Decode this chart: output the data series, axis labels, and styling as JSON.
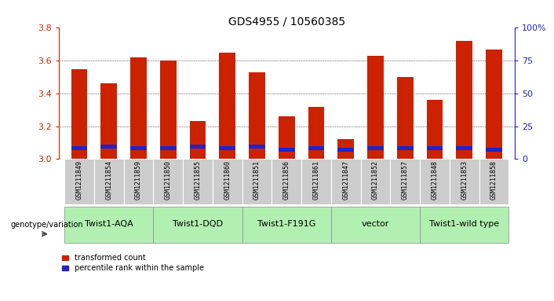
{
  "title": "GDS4955 / 10560385",
  "samples": [
    "GSM1211849",
    "GSM1211854",
    "GSM1211859",
    "GSM1211850",
    "GSM1211855",
    "GSM1211860",
    "GSM1211851",
    "GSM1211856",
    "GSM1211861",
    "GSM1211847",
    "GSM1211852",
    "GSM1211857",
    "GSM1211848",
    "GSM1211853",
    "GSM1211858"
  ],
  "red_values": [
    3.55,
    3.46,
    3.62,
    3.6,
    3.23,
    3.65,
    3.53,
    3.26,
    3.32,
    3.12,
    3.63,
    3.5,
    3.36,
    3.72,
    3.67
  ],
  "blue_heights": [
    0.025,
    0.025,
    0.025,
    0.025,
    0.025,
    0.025,
    0.025,
    0.025,
    0.025,
    0.025,
    0.025,
    0.025,
    0.025,
    0.025,
    0.025
  ],
  "blue_bottoms": [
    3.055,
    3.065,
    3.055,
    3.055,
    3.065,
    3.055,
    3.065,
    3.045,
    3.055,
    3.045,
    3.055,
    3.055,
    3.055,
    3.055,
    3.045
  ],
  "ymin": 3.0,
  "ymax": 3.8,
  "yticks": [
    3.0,
    3.2,
    3.4,
    3.6,
    3.8
  ],
  "grid_lines": [
    3.2,
    3.4,
    3.6
  ],
  "right_yticks": [
    0,
    25,
    50,
    75,
    100
  ],
  "right_ytick_labels": [
    "0",
    "25",
    "50",
    "75",
    "100%"
  ],
  "groups": [
    {
      "label": "Twist1-AQA",
      "start": 0,
      "end": 2
    },
    {
      "label": "Twist1-DQD",
      "start": 3,
      "end": 5
    },
    {
      "label": "Twist1-F191G",
      "start": 6,
      "end": 8
    },
    {
      "label": "vector",
      "start": 9,
      "end": 11
    },
    {
      "label": "Twist1-wild type",
      "start": 12,
      "end": 14
    }
  ],
  "group_color": "#b2f0b2",
  "bar_color_red": "#cc2200",
  "bar_color_blue": "#2222cc",
  "bar_width": 0.55,
  "genotype_label": "genotype/variation",
  "legend_red": "transformed count",
  "legend_blue": "percentile rank within the sample",
  "sample_bg_color": "#cccccc",
  "title_fontsize": 10,
  "sample_fontsize": 6,
  "group_label_fontsize": 8,
  "axis_label_fontsize": 8,
  "left_axis_color": "#cc2200",
  "right_axis_color": "#2222cc"
}
